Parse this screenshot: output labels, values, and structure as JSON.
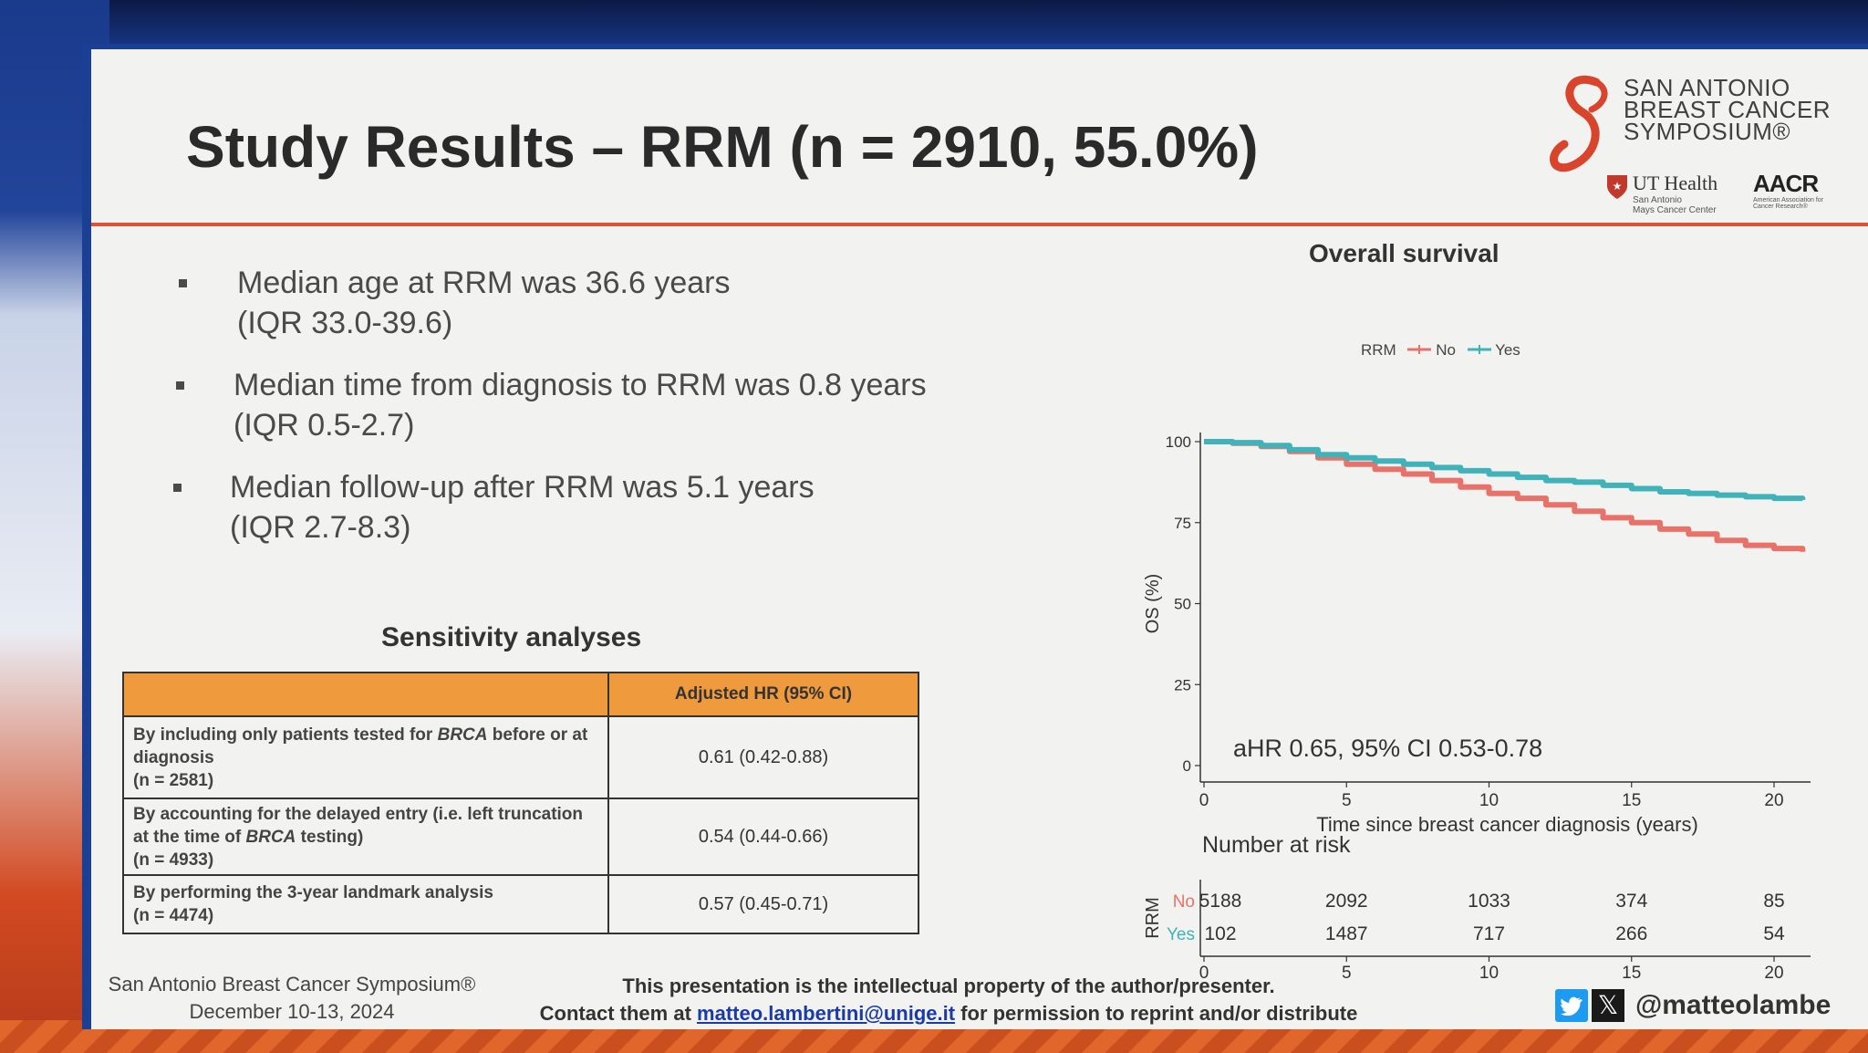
{
  "slide": {
    "title": "Study Results – RRM (n = 2910, 55.0%)",
    "logo": {
      "text": "SAN ANTONIO\nBREAST CANCER\nSYMPOSIUM®",
      "ut_health": "UT Health",
      "ut_sub": "San Antonio\nMays Cancer Center",
      "aacr": "AACR",
      "aacr_sub": "American Association for Cancer Research®"
    },
    "bullets": [
      {
        "line1": "Median age at RRM was 36.6 years",
        "line2": "(IQR 33.0-39.6)"
      },
      {
        "line1": "Median time from diagnosis to RRM was 0.8 years",
        "line2": "(IQR 0.5-2.7)"
      },
      {
        "line1": "Median follow-up after RRM was 5.1 years",
        "line2": "(IQR 2.7-8.3)"
      }
    ],
    "sensitivity": {
      "title": "Sensitivity analyses",
      "header_value": "Adjusted HR (95% CI)",
      "rows": [
        {
          "desc_a": "By including only patients tested for ",
          "desc_b": "BRCA",
          "desc_c": " before or at diagnosis",
          "n": "(n = 2581)",
          "value": "0.61 (0.42-0.88)"
        },
        {
          "desc_a": "By accounting for the delayed entry (i.e. left truncation at the time of ",
          "desc_b": "BRCA",
          "desc_c": " testing)",
          "n": "(n = 4933)",
          "value": "0.54 (0.44-0.66)"
        },
        {
          "desc_a": "By performing the 3-year landmark analysis",
          "desc_b": "",
          "desc_c": "",
          "n": "(n = 4474)",
          "value": "0.57 (0.45-0.71)"
        }
      ]
    },
    "footer": {
      "left_line1": "San Antonio Breast Cancer Symposium®",
      "left_line2": "December 10-13, 2024",
      "mid_line1": "This presentation is the intellectual property of the author/presenter.",
      "mid_prefix": "Contact them at ",
      "mid_email": "matteo.lambertini@unige.it",
      "mid_suffix": " for permission to reprint and/or distribute",
      "handle": "@matteolambe"
    }
  },
  "chart_data": {
    "type": "line",
    "title": "Overall survival",
    "xlabel": "Time since breast cancer diagnosis (years)",
    "ylabel": "OS (%)",
    "xlim": [
      0,
      20
    ],
    "ylim": [
      0,
      100
    ],
    "xticks": [
      "0",
      "5",
      "10",
      "15",
      "20"
    ],
    "yticks": [
      "0",
      "25",
      "50",
      "75",
      "100"
    ],
    "legend_title": "RRM",
    "legend_position": "top",
    "annotation": "aHR 0.65, 95% CI 0.53-0.78",
    "series": [
      {
        "name": "No",
        "color": "#e8726a",
        "x": [
          0,
          1,
          2,
          3,
          4,
          5,
          6,
          7,
          8,
          9,
          10,
          11,
          12,
          13,
          14,
          15,
          16,
          17,
          18,
          19,
          20,
          21
        ],
        "y": [
          100,
          99.5,
          98.5,
          97,
          95,
          93,
          91.5,
          90,
          88,
          86,
          84,
          82.5,
          80.5,
          78.5,
          76.5,
          75,
          73,
          71.5,
          69.5,
          68,
          67,
          66
        ]
      },
      {
        "name": "Yes",
        "color": "#3fb3b9",
        "x": [
          0,
          1,
          2,
          3,
          4,
          5,
          6,
          7,
          8,
          9,
          10,
          11,
          12,
          13,
          14,
          15,
          16,
          17,
          18,
          19,
          20,
          21
        ],
        "y": [
          100,
          99.7,
          98.8,
          97.5,
          96,
          95,
          94,
          93,
          92,
          91,
          90,
          89,
          88,
          87.5,
          86.5,
          85.5,
          84.5,
          84,
          83.5,
          83,
          82.5,
          82
        ]
      }
    ],
    "risk_table": {
      "title": "Number at risk",
      "strata_label": "RRM",
      "xticks": [
        "0",
        "5",
        "10",
        "15",
        "20"
      ],
      "xlabel": "Time since breast cancer diagnosis (years)",
      "rows": [
        {
          "name": "No",
          "color": "#e8726a",
          "values": [
            "5188",
            "2092",
            "1033",
            "374",
            "85"
          ]
        },
        {
          "name": "Yes",
          "color": "#3fb3b9",
          "values": [
            "102",
            "1487",
            "717",
            "266",
            "54"
          ]
        }
      ]
    }
  }
}
